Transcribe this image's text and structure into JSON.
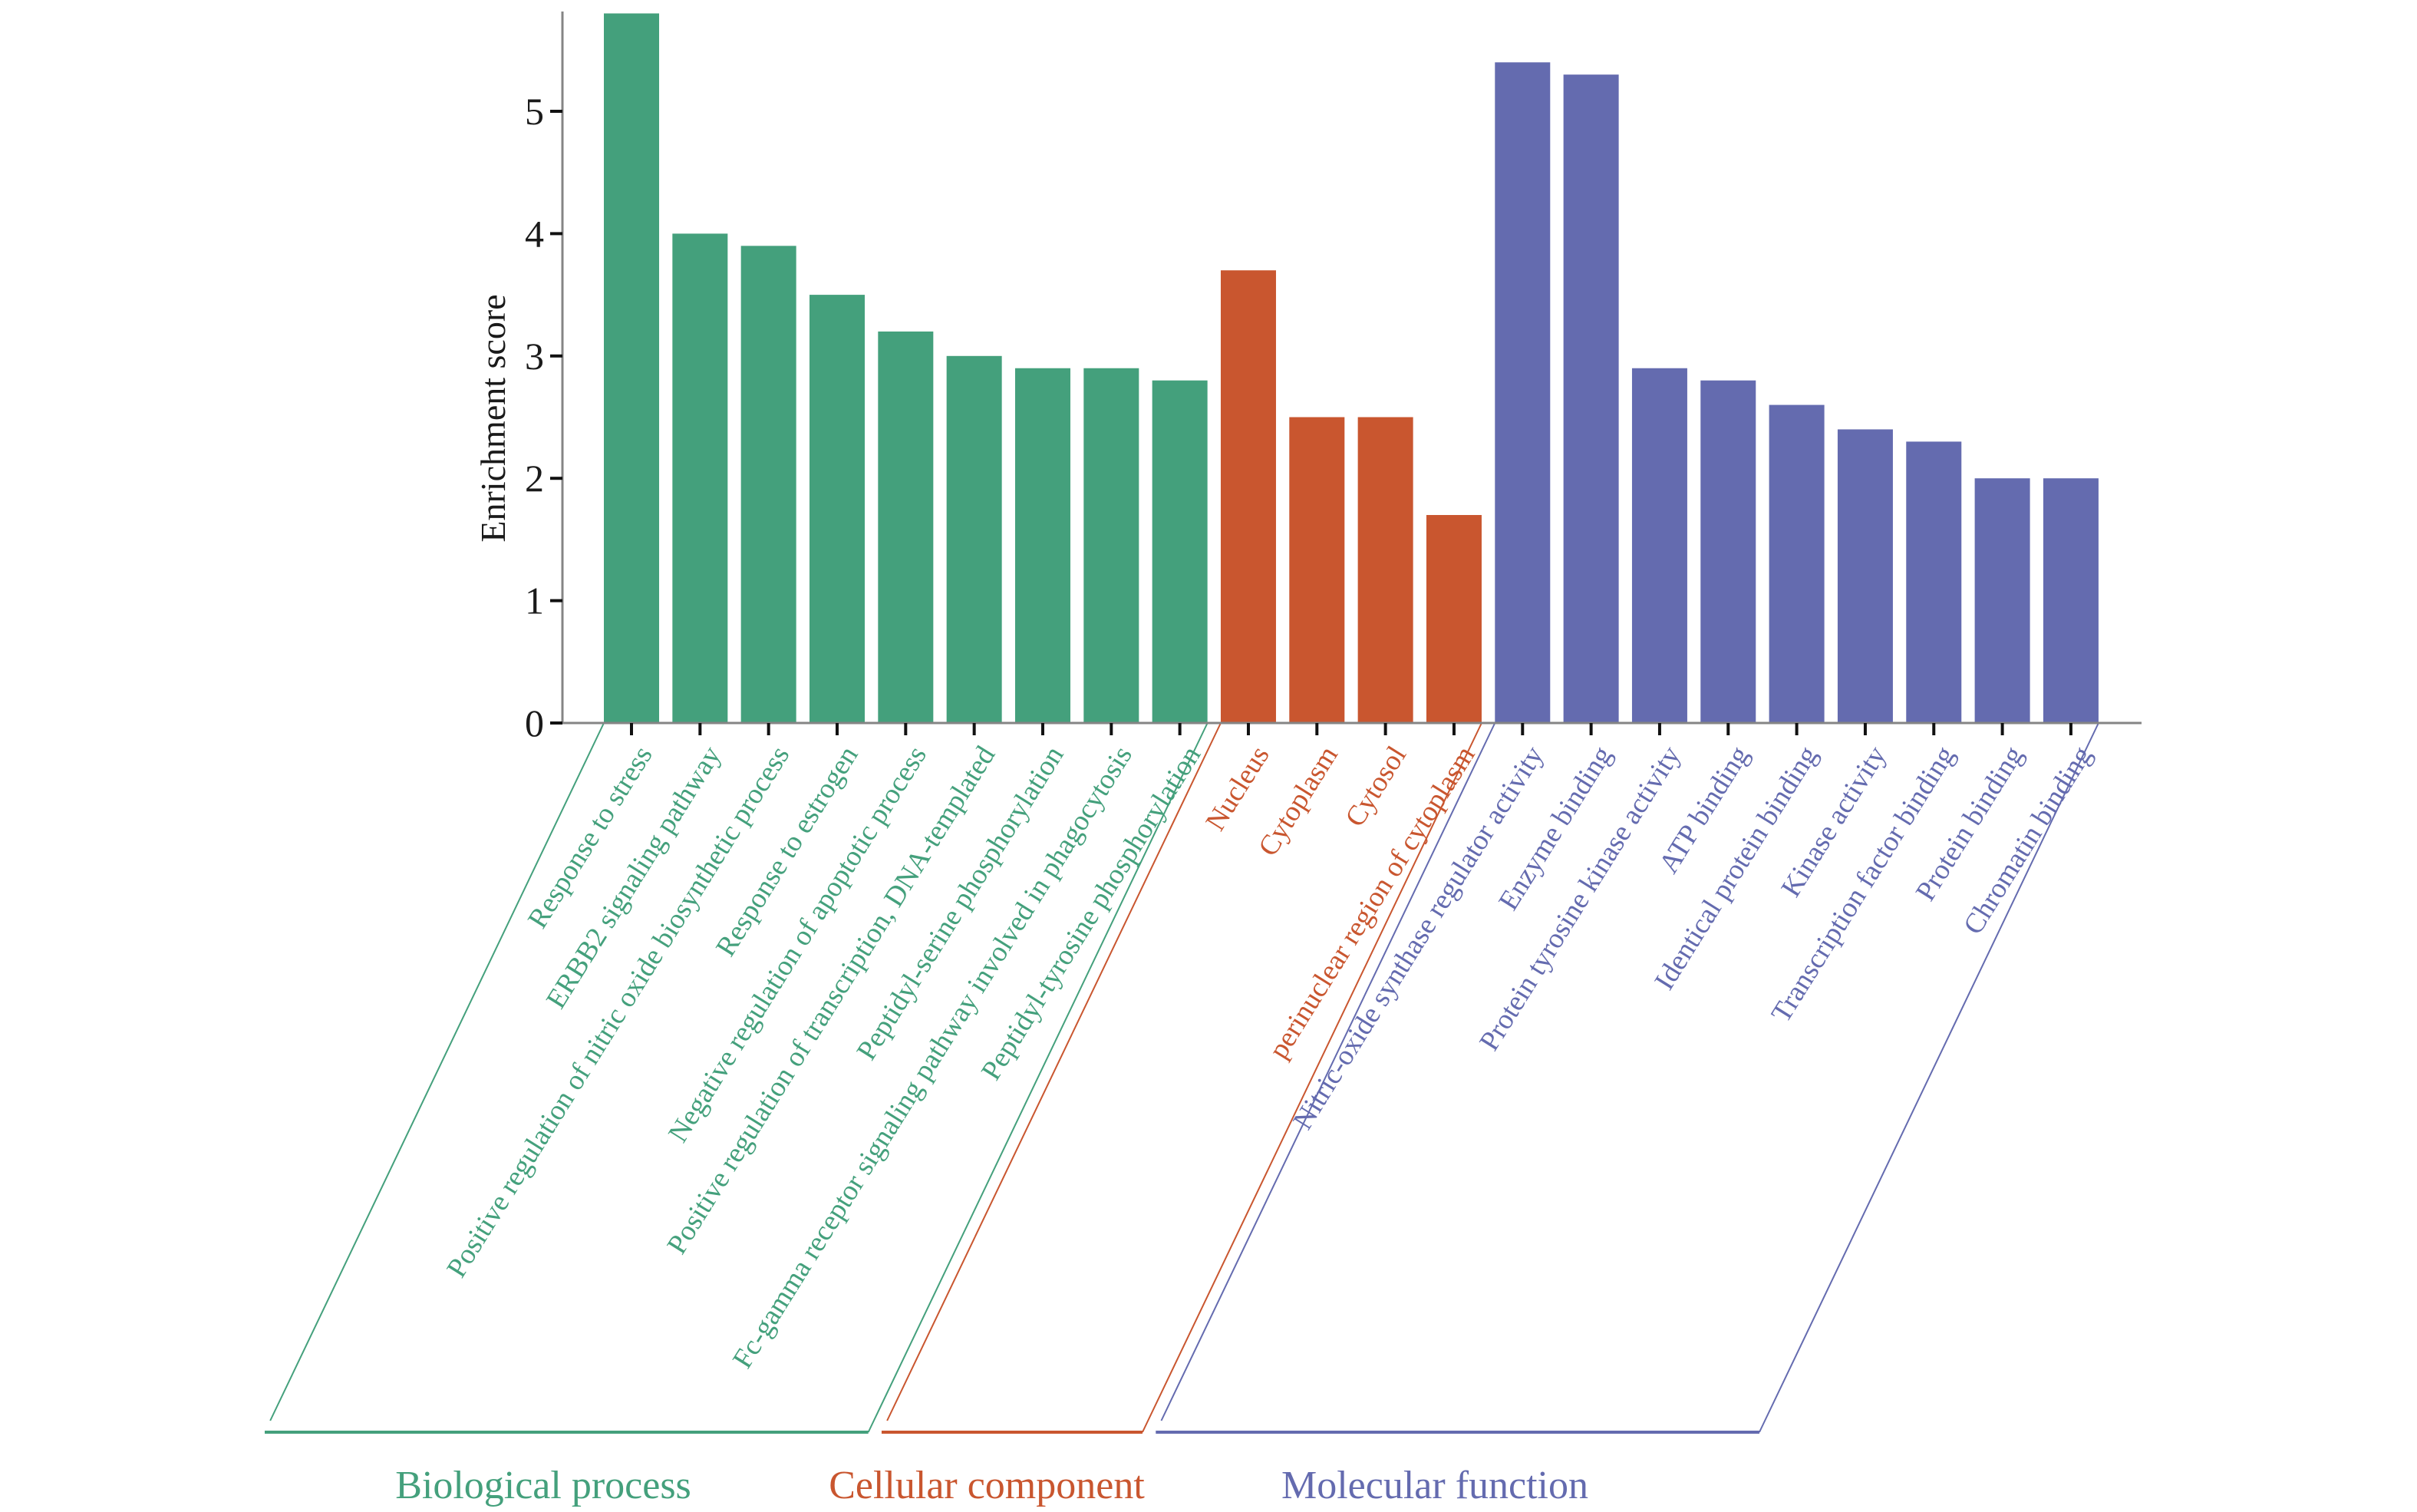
{
  "chart_data": {
    "type": "bar",
    "title": "",
    "xlabel": "",
    "ylabel": "Enrichment score",
    "ylim": [
      0,
      5.8
    ],
    "yticks": [
      0,
      1,
      2,
      3,
      4,
      5
    ],
    "grid": false,
    "legend": "bottom (group brackets)",
    "groups": [
      {
        "name": "Biological process",
        "color": "#44A07C",
        "categories": [
          "Response to stress",
          "ERBB2 signaling pathway",
          "Positive regulation of nitric oxide biosynthetic process",
          "Response to estrogen",
          "Negative regulation of apoptotic process",
          "Positive regulation of transcription, DNA-templated",
          "Peptidyl-serine phosphorylation",
          "Fc-gamma receptor signaling pathway involved in phagocytosis",
          "Peptidyl-tyrosine phosphorylation"
        ],
        "values": [
          5.8,
          4.0,
          3.9,
          3.5,
          3.2,
          3.0,
          2.9,
          2.9,
          2.8
        ]
      },
      {
        "name": "Cellular component",
        "color": "#C9562F",
        "categories": [
          "Nucleus",
          "Cytoplasm",
          "Cytosol",
          "perinuclear region of cytoplasm"
        ],
        "values": [
          3.7,
          2.5,
          2.5,
          1.7
        ]
      },
      {
        "name": "Molecular function",
        "color": "#646BAF",
        "categories": [
          "Nitric-oxide synthase regulator activity",
          "Enzyme binding",
          "Protein tyrosine kinase activity",
          "ATP binding",
          "Identical protein binding",
          "Kinase activity",
          "Transcription factor binding",
          "Protein binding",
          "Chromatin binding"
        ],
        "values": [
          5.4,
          5.3,
          2.9,
          2.8,
          2.6,
          2.4,
          2.3,
          2.0,
          2.0
        ]
      }
    ]
  }
}
